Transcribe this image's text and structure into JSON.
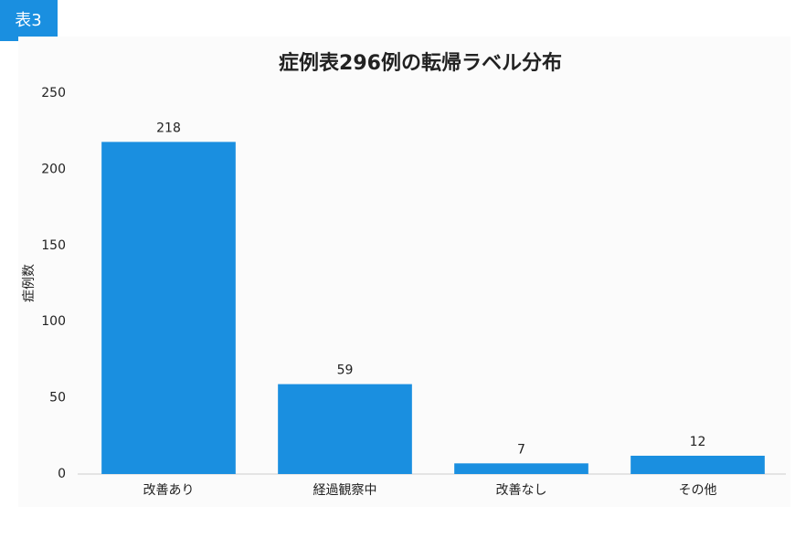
{
  "badge": "表3",
  "chart_data": {
    "type": "bar",
    "title": "症例表296例の転帰ラベル分布",
    "y_label": "症例数",
    "categories": [
      "改善あり",
      "経過観察中",
      "改善なし",
      "その他"
    ],
    "values": [
      218,
      59,
      7,
      12
    ],
    "color": "#1a8fe0",
    "ylim": [
      0,
      250
    ],
    "yticks": [
      0,
      50,
      100,
      150,
      200,
      250
    ],
    "grid": false
  }
}
